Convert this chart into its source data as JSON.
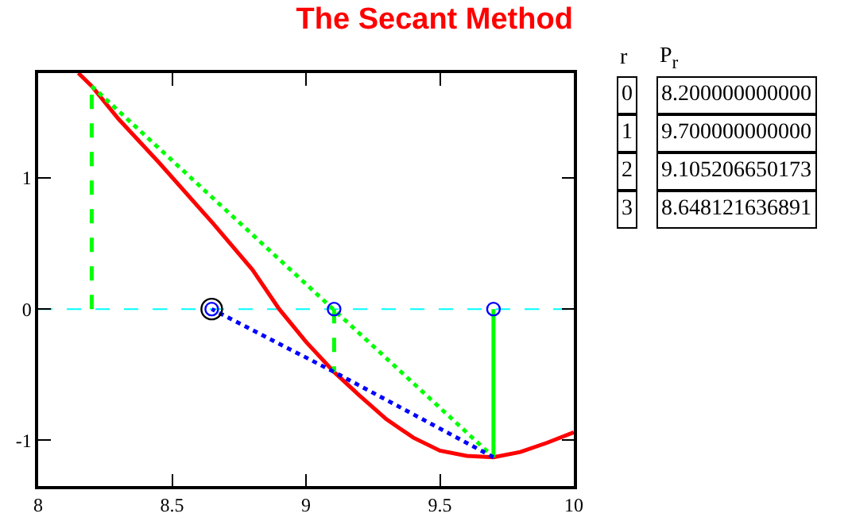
{
  "chart_data": {
    "type": "line",
    "title": "The Secant Method",
    "x": [
      8.15,
      8.2,
      8.3,
      8.45,
      8.65,
      8.8,
      8.9,
      9.0,
      9.105,
      9.2,
      9.3,
      9.4,
      9.5,
      9.6,
      9.7,
      9.8,
      9.9,
      10
    ],
    "series": [
      {
        "color": "#ff0000",
        "values": [
          1.8,
          1.7,
          1.45,
          1.12,
          0.66,
          0.3,
          0.0,
          -0.25,
          -0.48,
          -0.66,
          -0.84,
          -0.98,
          -1.08,
          -1.12,
          -1.13,
          -1.09,
          -1.02,
          -0.94
        ]
      },
      {
        "color": "#00ff00",
        "x": [
          8.2,
          9.7
        ],
        "values": [
          1.7,
          -1.13
        ],
        "line_style": "dotted"
      },
      {
        "color": "#00ff00",
        "x": [
          8.2,
          8.2
        ],
        "values": [
          0,
          1.7
        ],
        "line_style": "dashed"
      },
      {
        "color": "#00ff00",
        "x": [
          9.105,
          9.105
        ],
        "values": [
          0,
          -0.48
        ],
        "line_style": "dashed"
      },
      {
        "color": "#00ff00",
        "x": [
          9.7,
          9.7
        ],
        "values": [
          0,
          -1.13
        ],
        "line_style": "solid"
      },
      {
        "color": "#0000ff",
        "x": [
          9.7,
          9.105,
          8.648
        ],
        "values": [
          -1.13,
          -0.48,
          0
        ],
        "line_style": "dotted"
      },
      {
        "type": "scatter",
        "color": "#0000ff",
        "x": [
          8.648,
          9.105,
          9.7
        ],
        "values": [
          0,
          0,
          0
        ],
        "marker": "circle"
      },
      {
        "type": "scatter",
        "color": "#000000",
        "x": [
          8.648
        ],
        "values": [
          0
        ],
        "marker": "circle"
      }
    ],
    "xlim": [
      8,
      10
    ],
    "xticks": [
      8,
      8.5,
      9,
      9.5,
      10
    ],
    "ylim": [
      -1.35,
      1.8
    ],
    "yticks": [
      -1,
      0,
      1
    ],
    "ref_lines": [
      {
        "axis": "y",
        "value": 0,
        "color": "#00ffff",
        "line_style": "dashed"
      }
    ],
    "grid": false,
    "annotations": [
      "r",
      "P$_{r}$",
      "0",
      "8.200000000000",
      "1",
      "9.700000000000",
      "2",
      "9.105206650173",
      "3",
      "8.648121636891"
    ]
  }
}
